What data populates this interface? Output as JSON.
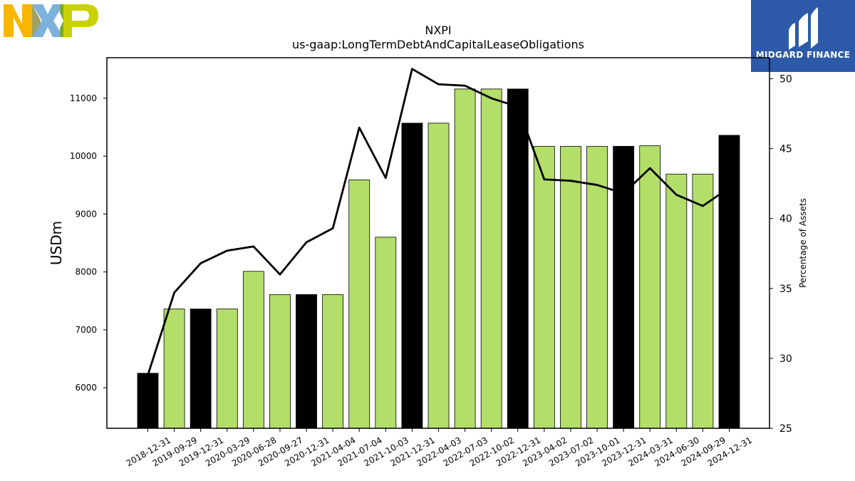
{
  "chart_data": {
    "type": "bar",
    "title": "NXPI",
    "subtitle": "us-gaap:LongTermDebtAndCapitalLeaseObligations",
    "ylabel": "USDm",
    "y2label": "Percentage of Assets",
    "ylim": [
      5300,
      11700
    ],
    "y2lim": [
      25,
      51.5
    ],
    "yticks": [
      6000,
      7000,
      8000,
      9000,
      10000,
      11000
    ],
    "y2ticks": [
      25,
      30,
      35,
      40,
      45,
      50
    ],
    "categories": [
      "2018-12-31",
      "2019-09-29",
      "2019-12-31",
      "2020-03-29",
      "2020-06-28",
      "2020-09-27",
      "2020-12-31",
      "2021-04-04",
      "2021-07-04",
      "2021-10-03",
      "2021-12-31",
      "2022-04-03",
      "2022-07-03",
      "2022-10-02",
      "2022-12-31",
      "2023-04-02",
      "2023-07-02",
      "2023-10-01",
      "2023-12-31",
      "2024-03-31",
      "2024-06-30",
      "2024-09-29",
      "2024-12-31"
    ],
    "series": [
      {
        "type": "bar",
        "axis": "left",
        "values": [
          6250,
          7360,
          7360,
          7360,
          8010,
          7610,
          7610,
          7610,
          9590,
          8600,
          10570,
          10570,
          11160,
          11160,
          11160,
          10170,
          10170,
          10170,
          10170,
          10180,
          9690,
          9690,
          10360
        ],
        "annual": [
          true,
          false,
          true,
          false,
          false,
          false,
          true,
          false,
          false,
          false,
          true,
          false,
          false,
          false,
          true,
          false,
          false,
          false,
          true,
          false,
          false,
          false,
          true
        ],
        "color_annual": "#000000",
        "color_quarterly": "#b3de69"
      },
      {
        "type": "line",
        "axis": "right",
        "color": "#000000",
        "values": [
          28.8,
          34.7,
          36.8,
          37.7,
          38.0,
          36.0,
          38.3,
          39.3,
          46.5,
          42.9,
          50.7,
          49.6,
          49.5,
          48.6,
          48.0,
          42.8,
          42.7,
          42.4,
          41.8,
          43.6,
          41.7,
          40.9,
          42.2
        ]
      }
    ]
  },
  "logos": {
    "left_logo": "NXP",
    "right_logo_text": "MIDGARD FINANCE",
    "left_logo_colors": [
      "#f9b500",
      "#7bb1db",
      "#c9d200"
    ],
    "right_logo_bg": "#2d5aa8"
  }
}
